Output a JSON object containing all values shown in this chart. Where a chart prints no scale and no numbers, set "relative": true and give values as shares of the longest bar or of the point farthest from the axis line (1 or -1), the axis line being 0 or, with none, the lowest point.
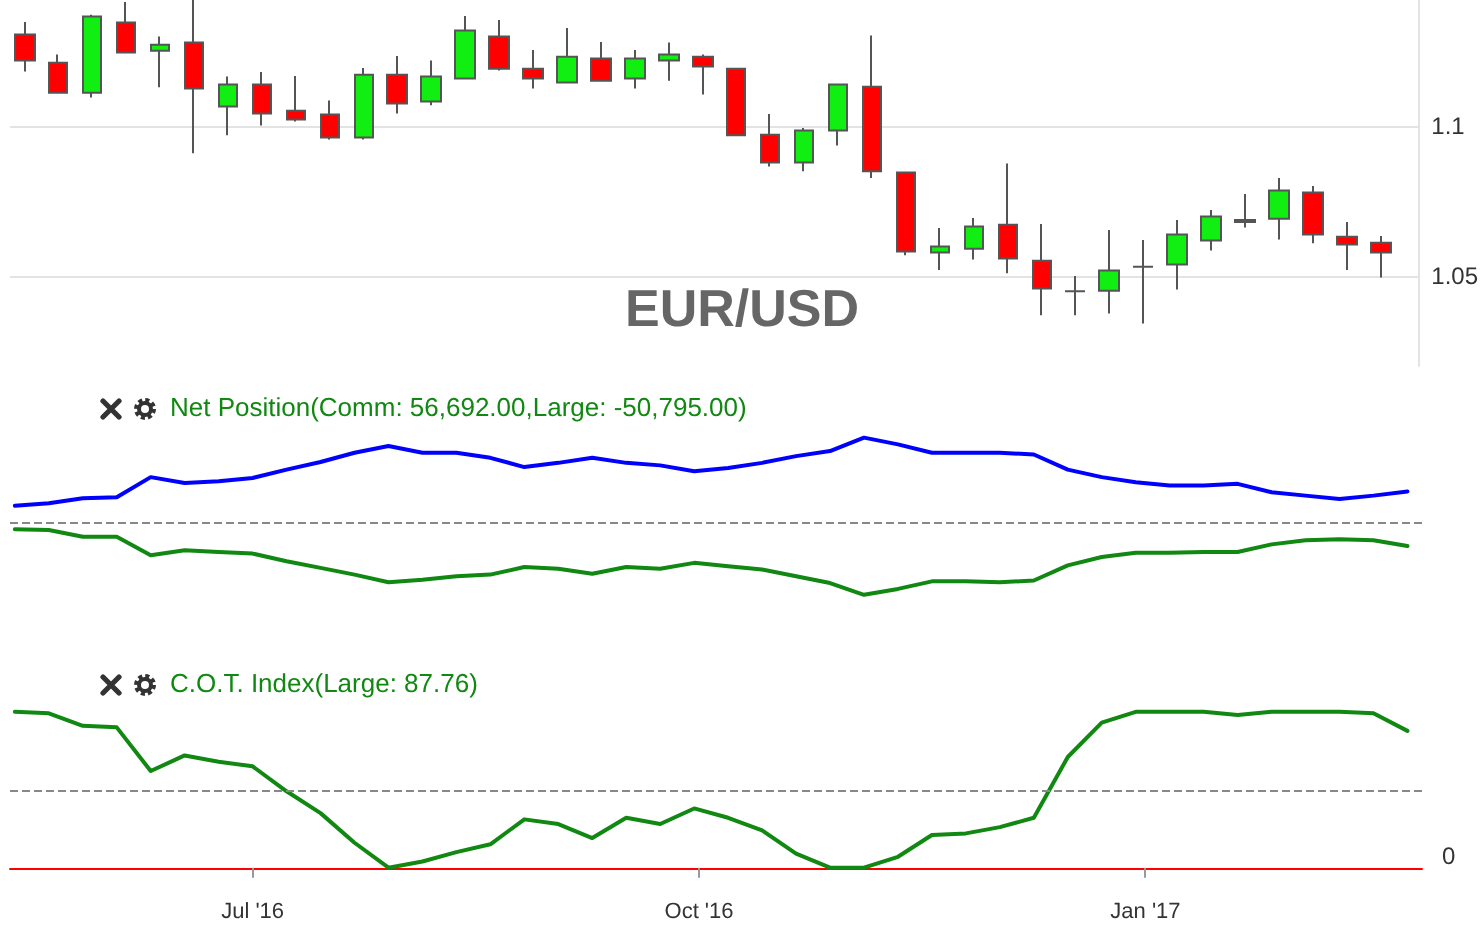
{
  "chart_data": [
    {
      "type": "candlestick",
      "title": "EUR/USD",
      "tick_labels": "y",
      "grid": "y",
      "xlim": [
        "2016-05-12",
        "2017-02-27"
      ],
      "ylim": [
        1.02,
        1.142
      ],
      "yticks": [
        1.05,
        1.1
      ],
      "x": [
        "2016-05-15",
        "2016-05-22",
        "2016-05-29",
        "2016-06-05",
        "2016-06-12",
        "2016-06-19",
        "2016-06-26",
        "2016-07-03",
        "2016-07-10",
        "2016-07-17",
        "2016-07-24",
        "2016-07-31",
        "2016-08-07",
        "2016-08-14",
        "2016-08-21",
        "2016-08-28",
        "2016-09-04",
        "2016-09-11",
        "2016-09-18",
        "2016-09-25",
        "2016-10-02",
        "2016-10-09",
        "2016-10-16",
        "2016-10-23",
        "2016-10-30",
        "2016-11-06",
        "2016-11-13",
        "2016-11-20",
        "2016-11-27",
        "2016-12-04",
        "2016-12-11",
        "2016-12-18",
        "2016-12-25",
        "2017-01-01",
        "2017-01-08",
        "2017-01-15",
        "2017-01-22",
        "2017-01-29",
        "2017-02-05",
        "2017-02-12",
        "2017-02-19"
      ],
      "ohlc": [
        [
          1.1305,
          1.1347,
          1.1182,
          1.1218
        ],
        [
          1.1211,
          1.1238,
          1.1111,
          1.1111
        ],
        [
          1.1111,
          1.1371,
          1.1095,
          1.1365
        ],
        [
          1.1345,
          1.1413,
          1.1245,
          1.1245
        ],
        [
          1.1251,
          1.1298,
          1.1129,
          1.1271
        ],
        [
          1.1278,
          1.142,
          1.0909,
          1.1125
        ],
        [
          1.1065,
          1.1165,
          1.0969,
          1.1138
        ],
        [
          1.1138,
          1.118,
          1.1002,
          1.1042
        ],
        [
          1.1051,
          1.1167,
          1.1015,
          1.1022
        ],
        [
          1.1038,
          1.1085,
          1.0955,
          1.0962
        ],
        [
          1.0962,
          1.1193,
          1.0955,
          1.1171
        ],
        [
          1.1171,
          1.1233,
          1.1042,
          1.1075
        ],
        [
          1.1082,
          1.1218,
          1.1069,
          1.1165
        ],
        [
          1.1158,
          1.1367,
          1.1158,
          1.1318
        ],
        [
          1.1298,
          1.1353,
          1.1185,
          1.1191
        ],
        [
          1.1191,
          1.1253,
          1.1125,
          1.1158
        ],
        [
          1.1145,
          1.1327,
          1.1145,
          1.1231
        ],
        [
          1.1225,
          1.128,
          1.1151,
          1.1151
        ],
        [
          1.1158,
          1.1253,
          1.1125,
          1.1225
        ],
        [
          1.1218,
          1.1278,
          1.1151,
          1.1238
        ],
        [
          1.1231,
          1.1238,
          1.1105,
          1.1198
        ],
        [
          1.1191,
          1.1191,
          1.0969,
          1.0969
        ],
        [
          1.0971,
          1.104,
          1.0865,
          1.0878
        ],
        [
          1.0878,
          1.0993,
          1.0849,
          1.0985
        ],
        [
          1.0985,
          1.1138,
          1.0935,
          1.1138
        ],
        [
          1.1131,
          1.1302,
          1.0827,
          1.0849
        ],
        [
          1.0845,
          1.0845,
          1.0569,
          1.0582
        ],
        [
          1.0578,
          1.066,
          1.052,
          1.0598
        ],
        [
          1.0591,
          1.0693,
          1.0555,
          1.0665
        ],
        [
          1.0671,
          1.0875,
          1.0509,
          1.0558
        ],
        [
          1.0551,
          1.0673,
          1.0369,
          1.0458
        ],
        [
          1.0449,
          1.05,
          1.0369,
          1.0449
        ],
        [
          1.0451,
          1.0653,
          1.0375,
          1.0518
        ],
        [
          1.0531,
          1.062,
          1.0342,
          1.0531
        ],
        [
          1.0538,
          1.0687,
          1.0455,
          1.0638
        ],
        [
          1.0618,
          1.072,
          1.0585,
          1.0698
        ],
        [
          1.068,
          1.0773,
          1.0662,
          1.0687
        ],
        [
          1.0691,
          1.0827,
          1.0622,
          1.0785
        ],
        [
          1.0778,
          1.08,
          1.0609,
          1.0638
        ],
        [
          1.0631,
          1.068,
          1.052,
          1.0605
        ],
        [
          1.0611,
          1.0633,
          1.0495,
          1.0578
        ]
      ],
      "colors": [
        "#ff0000",
        "#ff0000",
        "#11ee11",
        "#ff0000",
        "#11ee11",
        "#ff0000",
        "#11ee11",
        "#ff0000",
        "#ff0000",
        "#ff0000",
        "#11ee11",
        "#ff0000",
        "#11ee11",
        "#11ee11",
        "#ff0000",
        "#ff0000",
        "#11ee11",
        "#ff0000",
        "#11ee11",
        "#11ee11",
        "#ff0000",
        "#ff0000",
        "#ff0000",
        "#11ee11",
        "#11ee11",
        "#ff0000",
        "#ff0000",
        "#11ee11",
        "#11ee11",
        "#ff0000",
        "#ff0000",
        "#555555",
        "#11ee11",
        "#555555",
        "#11ee11",
        "#11ee11",
        "#555555",
        "#11ee11",
        "#ff0000",
        "#ff0000",
        "#ff0000"
      ]
    },
    {
      "type": "line",
      "title": "Net Position(Comm: 56,692.00,Large: -50,795.00)",
      "relative": true,
      "tick_labels": false,
      "marker": "none",
      "xlim": [
        "2016-05-12",
        "2017-02-27"
      ],
      "x": [
        "2016-05-13",
        "2016-05-20",
        "2016-05-27",
        "2016-06-03",
        "2016-06-10",
        "2016-06-17",
        "2016-06-24",
        "2016-07-01",
        "2016-07-08",
        "2016-07-15",
        "2016-07-22",
        "2016-07-29",
        "2016-08-05",
        "2016-08-12",
        "2016-08-19",
        "2016-08-26",
        "2016-09-02",
        "2016-09-09",
        "2016-09-16",
        "2016-09-23",
        "2016-09-30",
        "2016-10-07",
        "2016-10-14",
        "2016-10-21",
        "2016-10-28",
        "2016-11-04",
        "2016-11-11",
        "2016-11-18",
        "2016-11-25",
        "2016-12-02",
        "2016-12-09",
        "2016-12-16",
        "2016-12-23",
        "2016-12-30",
        "2017-01-06",
        "2017-01-13",
        "2017-01-20",
        "2017-01-27",
        "2017-02-03",
        "2017-02-10",
        "2017-02-17",
        "2017-02-24"
      ],
      "series": [
        {
          "color": "#0000ff",
          "values": [
            0.19,
            0.22,
            0.28,
            0.29,
            0.53,
            0.46,
            0.48,
            0.52,
            0.62,
            0.71,
            0.82,
            0.9,
            0.82,
            0.82,
            0.76,
            0.65,
            0.7,
            0.76,
            0.7,
            0.67,
            0.6,
            0.64,
            0.7,
            0.78,
            0.84,
            1,
            0.92,
            0.82,
            0.82,
            0.82,
            0.8,
            0.62,
            0.53,
            0.47,
            0.43,
            0.43,
            0.45,
            0.35,
            0.31,
            0.27,
            0.31,
            0.36
          ]
        },
        {
          "color": "#118811",
          "values": [
            -0.09,
            -0.1,
            -0.18,
            -0.18,
            -0.4,
            -0.34,
            -0.36,
            -0.38,
            -0.47,
            -0.55,
            -0.63,
            -0.72,
            -0.69,
            -0.65,
            -0.63,
            -0.54,
            -0.56,
            -0.62,
            -0.54,
            -0.56,
            -0.49,
            -0.53,
            -0.57,
            -0.65,
            -0.73,
            -0.87,
            -0.8,
            -0.71,
            -0.71,
            -0.72,
            -0.7,
            -0.52,
            -0.42,
            -0.37,
            -0.37,
            -0.36,
            -0.36,
            -0.27,
            -0.22,
            -0.21,
            -0.22,
            -0.29
          ]
        }
      ],
      "ref_lines": [
        {
          "axis": "y",
          "value": 0,
          "color": "#888888",
          "line_style": "dashed"
        }
      ]
    },
    {
      "type": "line",
      "title": "C.O.T. Index(Large: 87.76)",
      "relative": true,
      "annotations": [
        "0"
      ],
      "marker": "none",
      "xlim": [
        "2016-05-12",
        "2017-02-27"
      ],
      "xticks": [
        {
          "value": "2016-07-01",
          "label": "Jul '16"
        },
        {
          "value": "2016-10-01",
          "label": "Oct '16"
        },
        {
          "value": "2017-01-01",
          "label": "Jan '17"
        }
      ],
      "x": [
        "2016-05-13",
        "2016-05-20",
        "2016-05-27",
        "2016-06-03",
        "2016-06-10",
        "2016-06-17",
        "2016-06-24",
        "2016-07-01",
        "2016-07-08",
        "2016-07-15",
        "2016-07-22",
        "2016-07-29",
        "2016-08-05",
        "2016-08-12",
        "2016-08-19",
        "2016-08-26",
        "2016-09-02",
        "2016-09-09",
        "2016-09-16",
        "2016-09-23",
        "2016-09-30",
        "2016-10-07",
        "2016-10-14",
        "2016-10-21",
        "2016-10-28",
        "2016-11-04",
        "2016-11-11",
        "2016-11-18",
        "2016-11-25",
        "2016-12-02",
        "2016-12-09",
        "2016-12-16",
        "2016-12-23",
        "2016-12-30",
        "2017-01-06",
        "2017-01-13",
        "2017-01-20",
        "2017-01-27",
        "2017-02-03",
        "2017-02-10",
        "2017-02-17",
        "2017-02-24"
      ],
      "series": [
        {
          "color": "#118811",
          "values": [
            1,
            0.99,
            0.91,
            0.9,
            0.62,
            0.72,
            0.68,
            0.65,
            0.49,
            0.35,
            0.16,
            0,
            0.04,
            0.1,
            0.15,
            0.31,
            0.28,
            0.19,
            0.32,
            0.28,
            0.38,
            0.32,
            0.24,
            0.09,
            0,
            0,
            0.07,
            0.21,
            0.22,
            0.26,
            0.32,
            0.71,
            0.93,
            1,
            1,
            1,
            0.98,
            1,
            1,
            1,
            0.99,
            0.8776
          ]
        }
      ],
      "ref_lines": [
        {
          "axis": "y",
          "value": 0.5,
          "color": "#888888",
          "line_style": "dashed"
        }
      ]
    }
  ]
}
